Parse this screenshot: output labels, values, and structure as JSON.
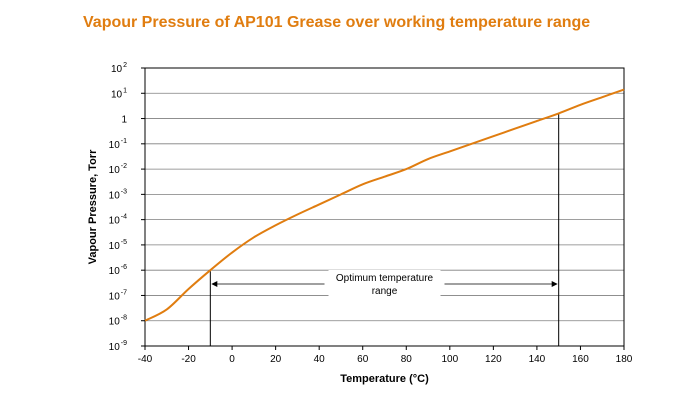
{
  "chart_data": {
    "type": "line",
    "title": "Vapour Pressure of AP101 Grease over working temperature range",
    "xlabel": "Temperature (°C)",
    "ylabel": "Vapour Pressure, Torr",
    "xlim": [
      -40,
      180
    ],
    "x_ticks": [
      -40,
      -20,
      0,
      20,
      40,
      60,
      80,
      100,
      120,
      140,
      160,
      180
    ],
    "x_tick_labels": [
      "-40",
      "-20",
      "0",
      "20",
      "40",
      "60",
      "80",
      "100",
      "120",
      "140",
      "160",
      "180"
    ],
    "y_scale": "log",
    "ylim": [
      1e-09,
      100
    ],
    "y_tick_labels": [
      {
        "value": 100,
        "base": "10",
        "exp": "2"
      },
      {
        "value": 10,
        "base": "10",
        "exp": "1"
      },
      {
        "value": 1,
        "base": "1",
        "exp": ""
      },
      {
        "value": 0.1,
        "base": "10",
        "exp": "-1"
      },
      {
        "value": 0.01,
        "base": "10",
        "exp": "-2"
      },
      {
        "value": 0.001,
        "base": "10",
        "exp": "-3"
      },
      {
        "value": 0.0001,
        "base": "10",
        "exp": "-4"
      },
      {
        "value": 1e-05,
        "base": "10",
        "exp": "-5"
      },
      {
        "value": 1e-06,
        "base": "10",
        "exp": "-6"
      },
      {
        "value": 1e-07,
        "base": "10",
        "exp": "-7"
      },
      {
        "value": 1e-08,
        "base": "10",
        "exp": "-8"
      },
      {
        "value": 1e-09,
        "base": "10",
        "exp": "-9"
      }
    ],
    "grid": "horizontal",
    "series": [
      {
        "color": "#e07d10",
        "x": [
          -40,
          -30,
          -20,
          -10,
          0,
          10,
          20,
          30,
          40,
          50,
          60,
          70,
          80,
          90,
          100,
          110,
          120,
          130,
          140,
          150,
          160,
          170,
          180
        ],
        "y": [
          1e-08,
          2.8e-08,
          1.8e-07,
          1e-06,
          5e-06,
          2e-05,
          6e-05,
          0.00016,
          0.0004,
          0.001,
          0.0025,
          0.005,
          0.01,
          0.025,
          0.05,
          0.1,
          0.2,
          0.4,
          0.8,
          1.6,
          3.5,
          7,
          14
        ]
      }
    ],
    "annotations": {
      "range_label_line1": "Optimum temperature",
      "range_label_line2": "range",
      "range_start": -10,
      "range_end": 150
    }
  }
}
